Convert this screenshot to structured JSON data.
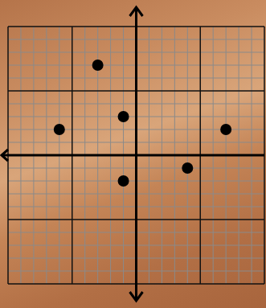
{
  "chart_data": {
    "type": "scatter",
    "x": [
      -3,
      -1,
      -6,
      7,
      4,
      -1
    ],
    "values": [
      7,
      3,
      2,
      2,
      -1,
      -2
    ],
    "color": "#000000",
    "marker": "circle",
    "xlim": [
      -10,
      10
    ],
    "ylim": [
      -10,
      10
    ],
    "xticks": [
      -10,
      -9,
      -8,
      -7,
      -6,
      -5,
      -4,
      -3,
      -2,
      -1,
      0,
      1,
      2,
      3,
      4,
      5,
      6,
      7,
      8,
      9,
      10
    ],
    "yticks": [
      -10,
      -9,
      -8,
      -7,
      -6,
      -5,
      -4,
      -3,
      -2,
      -1,
      0,
      1,
      2,
      3,
      4,
      5,
      6,
      7,
      8,
      9,
      10
    ],
    "grid": true,
    "tick_labels": false
  }
}
